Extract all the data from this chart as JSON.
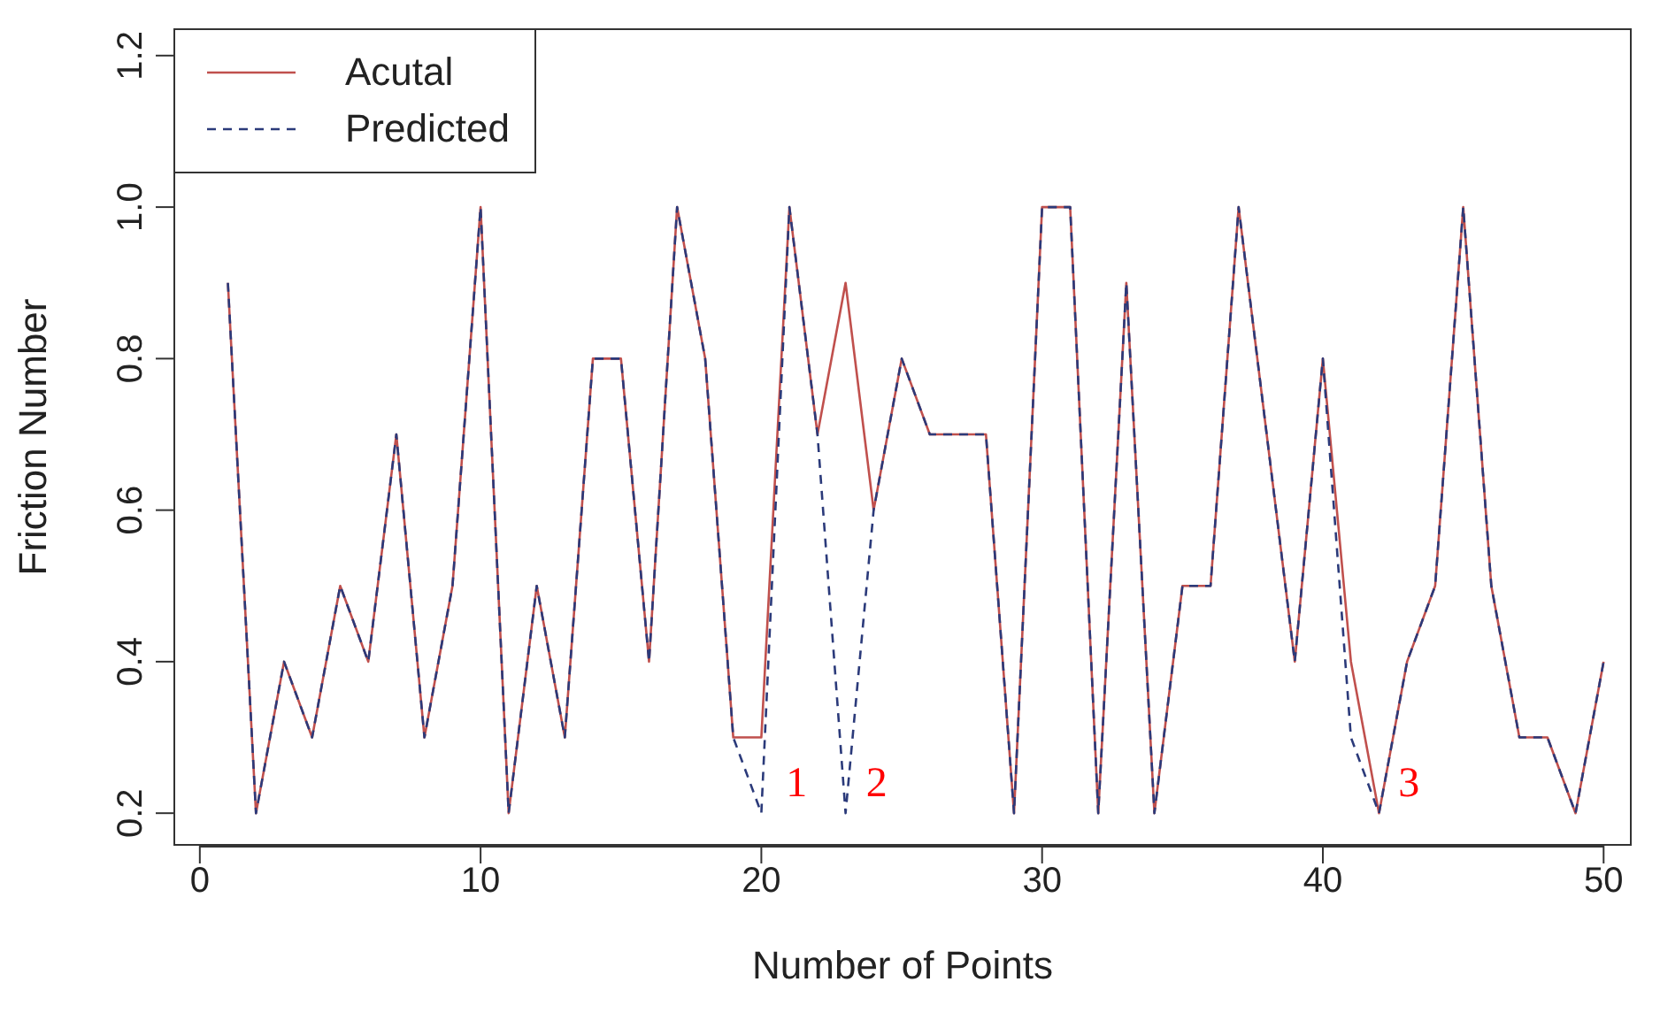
{
  "chart_data": {
    "type": "line",
    "xlabel": "Number of Points",
    "ylabel": "Friction Number",
    "x": [
      1,
      2,
      3,
      4,
      5,
      6,
      7,
      8,
      9,
      10,
      11,
      12,
      13,
      14,
      15,
      16,
      17,
      18,
      19,
      20,
      21,
      22,
      23,
      24,
      25,
      26,
      27,
      28,
      29,
      30,
      31,
      32,
      33,
      34,
      35,
      36,
      37,
      38,
      39,
      40,
      41,
      42,
      43,
      44,
      45,
      46,
      47,
      48,
      49,
      50
    ],
    "series": [
      {
        "name": "Acutal",
        "color": "#c0504d",
        "line_style": "solid",
        "values": [
          0.9,
          0.2,
          0.4,
          0.3,
          0.5,
          0.4,
          0.7,
          0.3,
          0.5,
          1.0,
          0.2,
          0.5,
          0.3,
          0.8,
          0.8,
          0.4,
          1.0,
          0.8,
          0.3,
          0.3,
          1.0,
          0.7,
          0.9,
          0.6,
          0.8,
          0.7,
          0.7,
          0.7,
          0.2,
          1.0,
          1.0,
          0.2,
          0.9,
          0.2,
          0.5,
          0.5,
          1.0,
          0.7,
          0.4,
          0.8,
          0.4,
          0.2,
          0.4,
          0.5,
          1.0,
          0.5,
          0.3,
          0.3,
          0.2,
          0.4
        ]
      },
      {
        "name": "Predicted",
        "color": "#2b3a7a",
        "line_style": "dashed",
        "values": [
          0.9,
          0.2,
          0.4,
          0.3,
          0.5,
          0.4,
          0.7,
          0.3,
          0.5,
          1.0,
          0.2,
          0.5,
          0.3,
          0.8,
          0.8,
          0.4,
          1.0,
          0.8,
          0.3,
          0.2,
          1.0,
          0.7,
          0.2,
          0.6,
          0.8,
          0.7,
          0.7,
          0.7,
          0.2,
          1.0,
          1.0,
          0.2,
          0.9,
          0.2,
          0.5,
          0.5,
          1.0,
          0.7,
          0.4,
          0.8,
          0.3,
          0.2,
          0.4,
          0.5,
          1.0,
          0.5,
          0.3,
          0.3,
          0.2,
          0.4
        ]
      }
    ],
    "xlim": [
      -0.94,
      51
    ],
    "xticks": [
      0,
      10,
      20,
      30,
      40,
      50
    ],
    "ylim": [
      0.157,
      1.236
    ],
    "yticks": [
      0.2,
      0.4,
      0.6,
      0.8,
      {
        "value": 1,
        "label": "1.0"
      },
      1.2
    ],
    "legend": "top left",
    "grid": false,
    "marker": "none",
    "annotations": [
      "1",
      "2",
      "3"
    ]
  }
}
